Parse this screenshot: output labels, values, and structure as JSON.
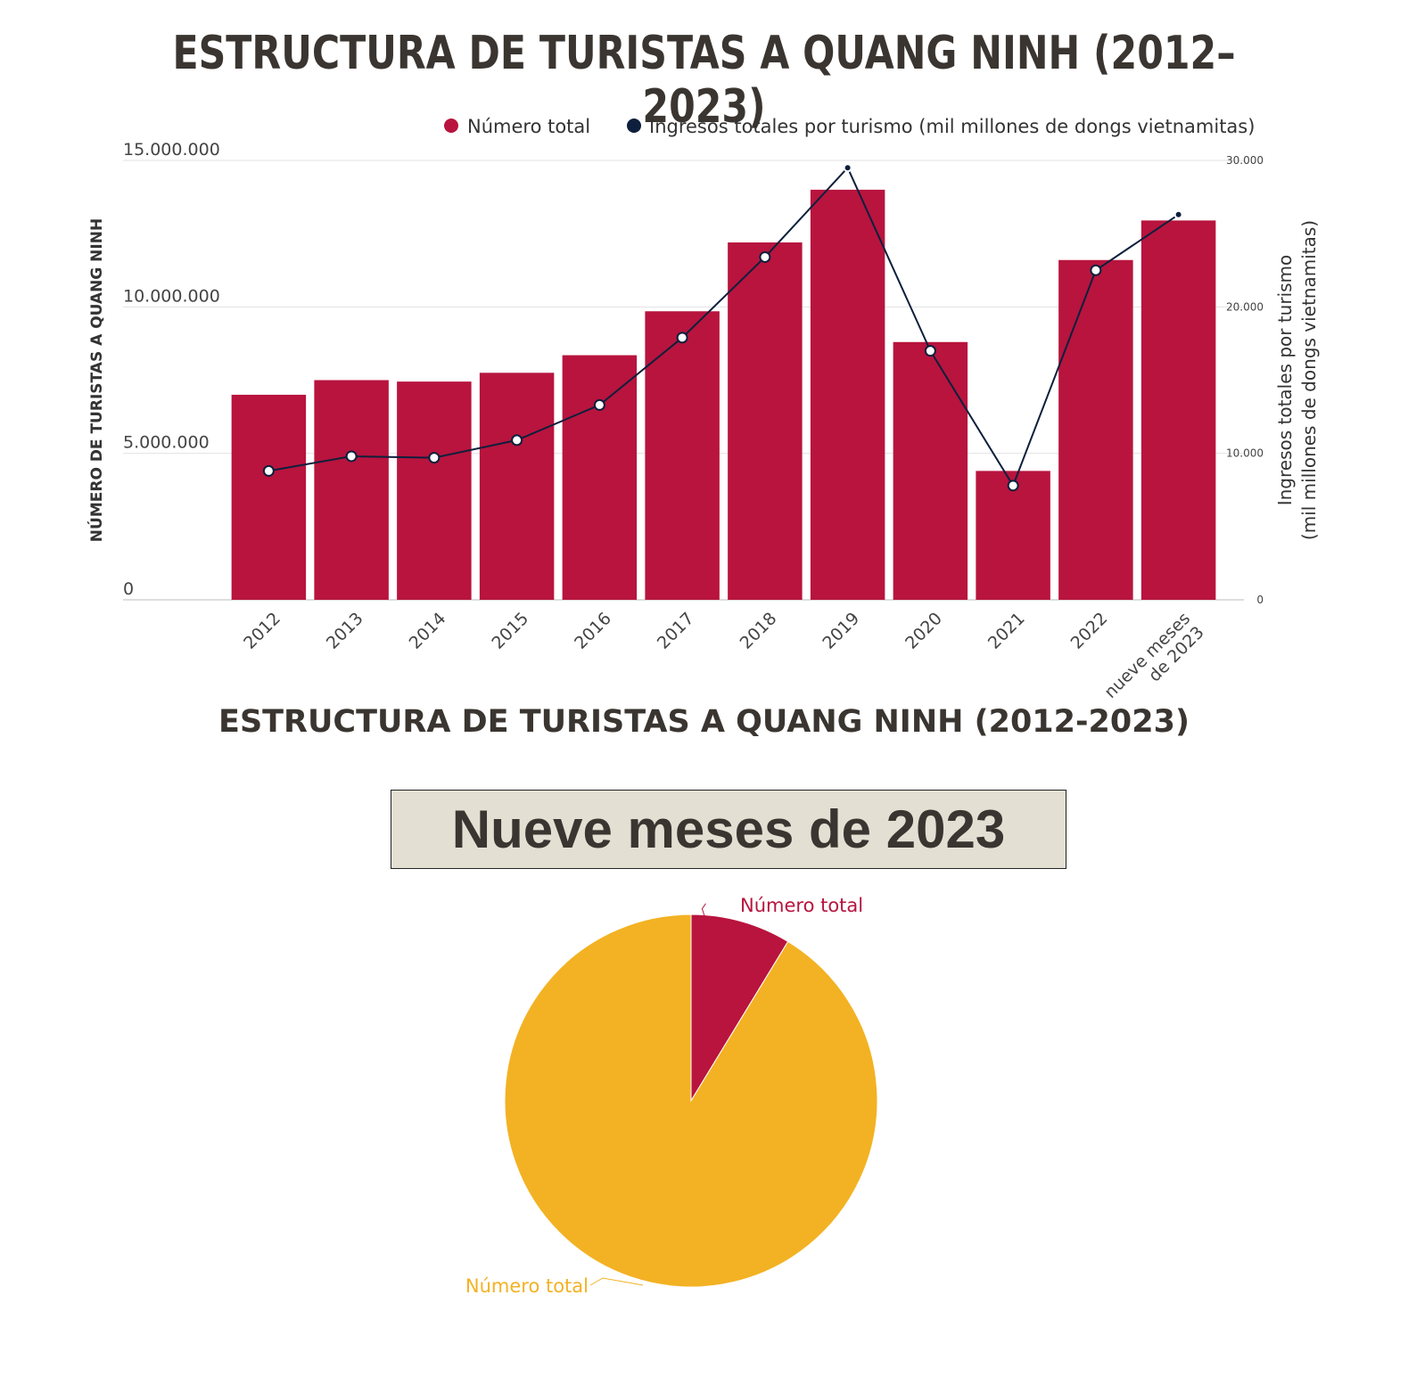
{
  "title": "ESTRUCTURA DE TURISTAS A QUANG NINH (2012–2023)",
  "chart_data": [
    {
      "type": "bar",
      "categories": [
        "2012",
        "2013",
        "2014",
        "2015",
        "2016",
        "2017",
        "2018",
        "2019",
        "2020",
        "2021",
        "2022",
        "nueve meses de 2023"
      ],
      "series": [
        {
          "name": "Número total",
          "type": "bar",
          "axis": "left",
          "color": "#b8143e",
          "values": [
            7000000,
            7500000,
            7450000,
            7750000,
            8350000,
            9850000,
            12200000,
            14000000,
            8800000,
            4400000,
            11600000,
            12950000
          ]
        },
        {
          "name": "Ingresos totales por turismo (mil millones de dongs vietnamitas)",
          "type": "line",
          "axis": "right",
          "color": "#0d1f3c",
          "values": [
            8800,
            9800,
            9700,
            10900,
            13300,
            17900,
            23400,
            29500,
            17000,
            7800,
            22500,
            26300
          ]
        }
      ],
      "ylabel": "NÚMERO DE TURISTAS A QUANG NINH",
      "ylabel_right": "Ingresos totales por turismo (mil millones de dongs vietnamitas)",
      "ylabel_right_lines": [
        "Ingresos totales por turismo",
        "(mil millones de dongs vietnamitas)"
      ],
      "ylim": [
        0,
        15000000
      ],
      "ylim_right": [
        0,
        30000
      ],
      "yticks": [
        0,
        5000000,
        10000000,
        15000000
      ],
      "ytick_labels": [
        "0",
        "5.000.000",
        "10.000.000",
        "15.000.000"
      ],
      "yticks_right": [
        0,
        10000,
        20000,
        30000
      ],
      "ytick_labels_right": [
        "0",
        "10.000",
        "20.000",
        "30.000"
      ],
      "xtick_label_lines": [
        [
          "2012"
        ],
        [
          "2013"
        ],
        [
          "2014"
        ],
        [
          "2015"
        ],
        [
          "2016"
        ],
        [
          "2017"
        ],
        [
          "2018"
        ],
        [
          "2019"
        ],
        [
          "2020"
        ],
        [
          "2021"
        ],
        [
          "2022"
        ],
        [
          "nueve meses",
          "de 2023"
        ]
      ],
      "legend": "top-right",
      "grid": true
    },
    {
      "type": "pie",
      "title": "ESTRUCTURA DE TURISTAS A QUANG NINH (2012-2023)",
      "subtitle": "Nueve meses de 2023",
      "slices": [
        {
          "label": "Número total",
          "value": 8.7,
          "color": "#b8143e",
          "label_color": "#b8143e"
        },
        {
          "label": "Número total",
          "value": 91.3,
          "color": "#f3b223",
          "label_color": "#f3b223"
        }
      ]
    }
  ]
}
